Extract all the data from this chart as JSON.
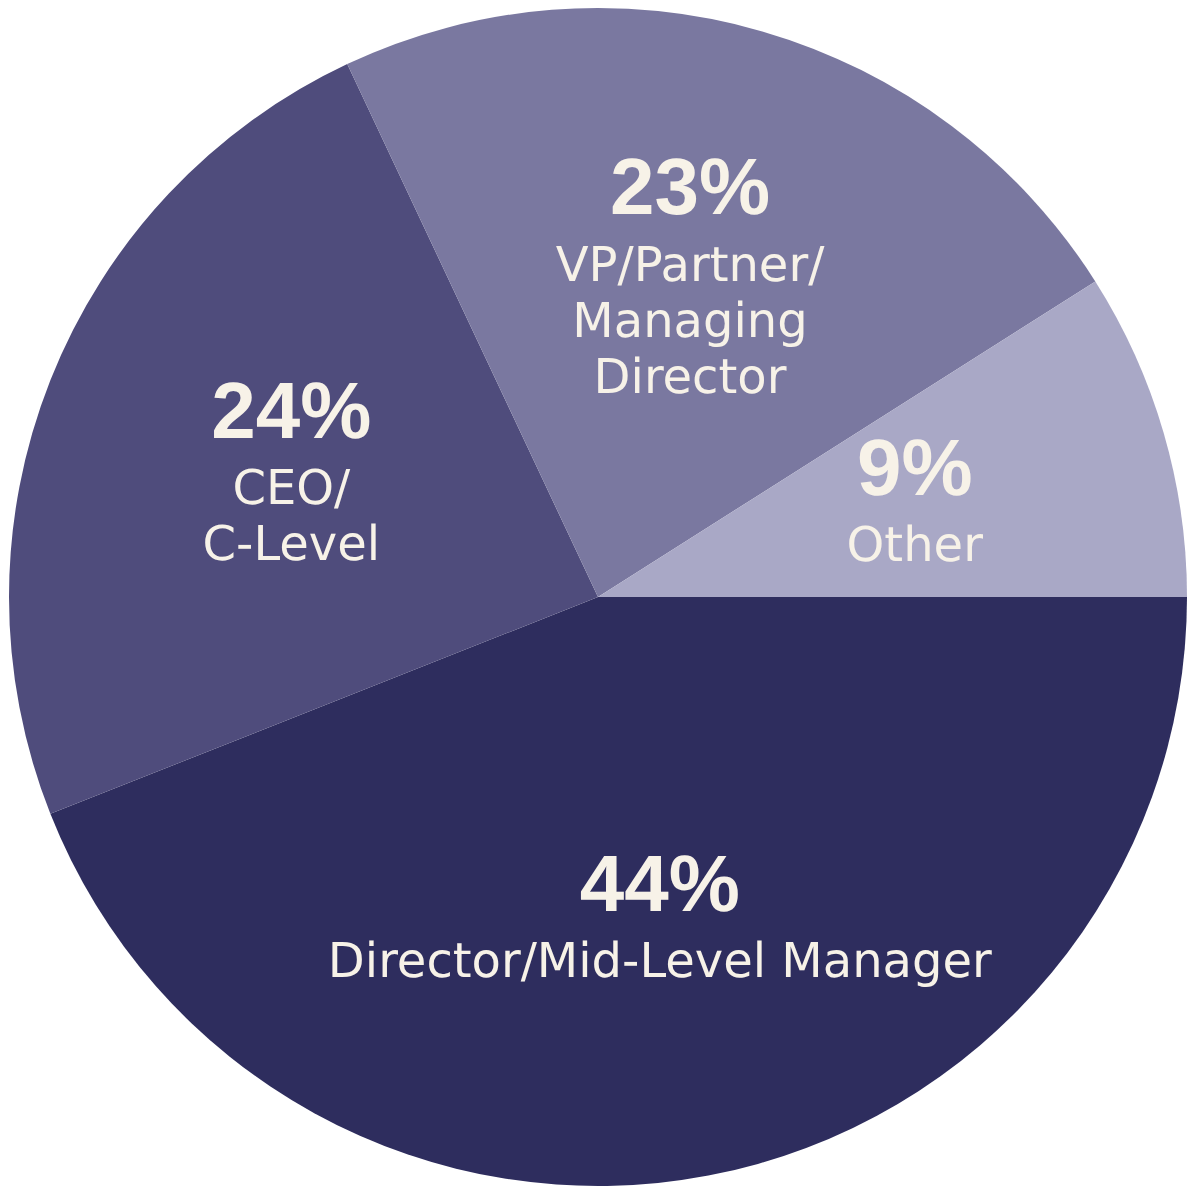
{
  "chart_data": {
    "type": "pie",
    "categories": [
      "Director/Mid-Level Manager",
      "CEO/\nC-Level",
      "VP/Partner/\nManaging\nDirector",
      "Other"
    ],
    "values": [
      44,
      24,
      23,
      9
    ],
    "colors": [
      "#2e2d5e",
      "#4f4c7c",
      "#7a78a0",
      "#a9a8c6"
    ],
    "value_labels": [
      "44%",
      "24%",
      "23%",
      "9%"
    ],
    "legend": false
  }
}
